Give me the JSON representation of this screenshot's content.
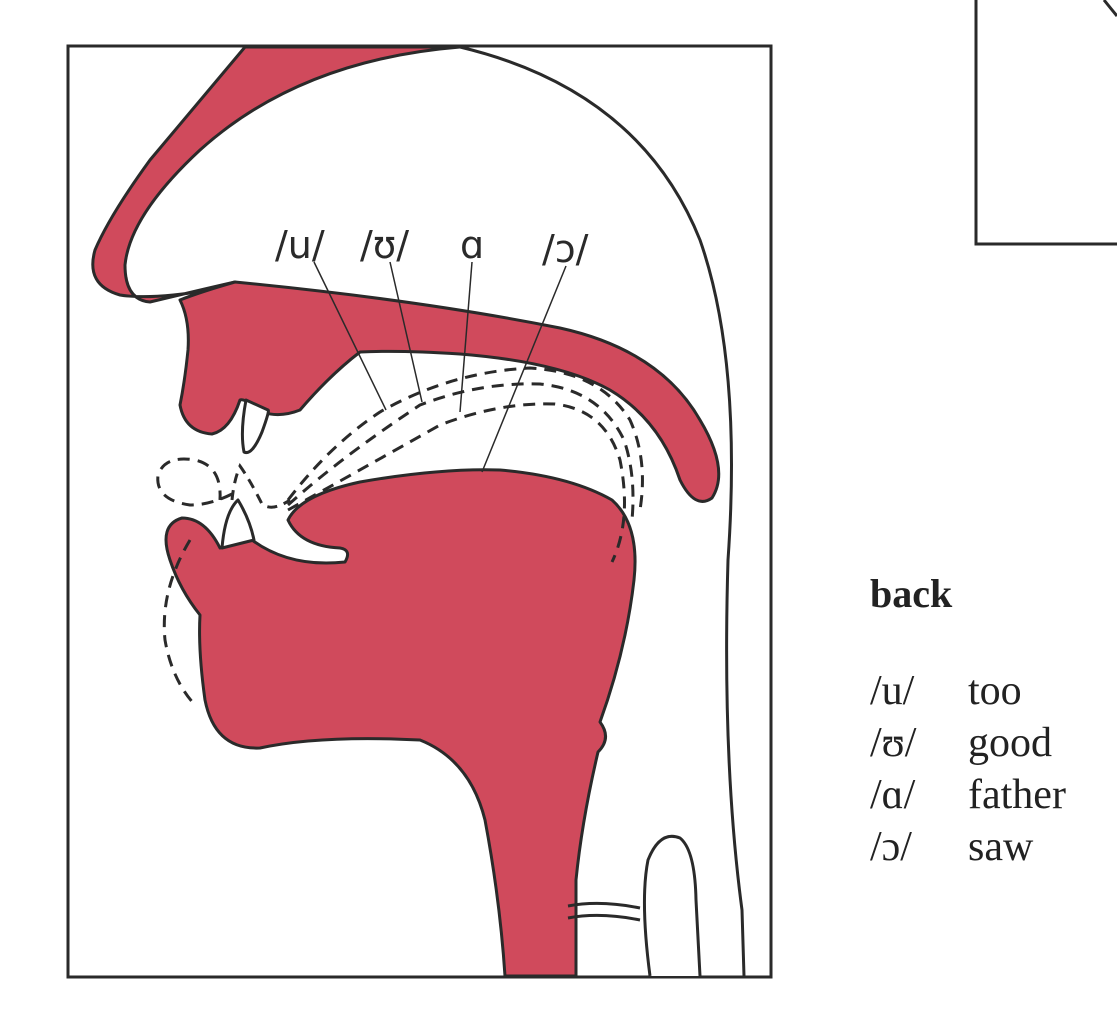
{
  "colors": {
    "tissue": "#d04a5c",
    "stroke": "#2a2a2a",
    "background": "#ffffff"
  },
  "diagram": {
    "tongue_labels": [
      "/u/",
      "/ʊ/",
      "ɑ",
      "/ɔ/"
    ]
  },
  "legend": {
    "title": "back",
    "items": [
      {
        "symbol": "/u/",
        "word": "too"
      },
      {
        "symbol": "/ʊ/",
        "word": "good"
      },
      {
        "symbol": "/ɑ/",
        "word": "father"
      },
      {
        "symbol": "/ɔ/",
        "word": "saw"
      }
    ]
  }
}
